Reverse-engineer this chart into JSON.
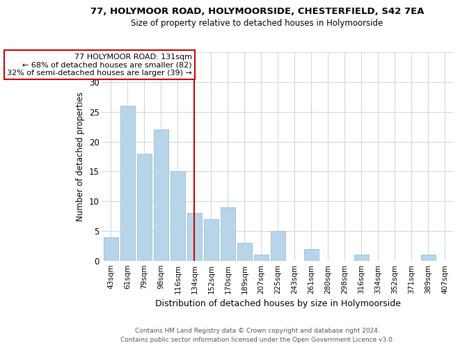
{
  "title": "77, HOLYMOOR ROAD, HOLYMOORSIDE, CHESTERFIELD, S42 7EA",
  "subtitle": "Size of property relative to detached houses in Holymoorside",
  "xlabel": "Distribution of detached houses by size in Holymoorside",
  "ylabel": "Number of detached properties",
  "bar_labels": [
    "43sqm",
    "61sqm",
    "79sqm",
    "98sqm",
    "116sqm",
    "134sqm",
    "152sqm",
    "170sqm",
    "189sqm",
    "207sqm",
    "225sqm",
    "243sqm",
    "261sqm",
    "280sqm",
    "298sqm",
    "316sqm",
    "334sqm",
    "352sqm",
    "371sqm",
    "389sqm",
    "407sqm"
  ],
  "bar_values": [
    4,
    26,
    18,
    22,
    15,
    8,
    7,
    9,
    3,
    1,
    5,
    0,
    2,
    0,
    0,
    1,
    0,
    0,
    0,
    1,
    0
  ],
  "bar_color": "#b8d4e8",
  "bar_edge_color": "#9ec4da",
  "property_line_x": 5,
  "property_line_label": "77 HOLYMOOR ROAD: 131sqm",
  "annotation_line1": "← 68% of detached houses are smaller (82)",
  "annotation_line2": "32% of semi-detached houses are larger (39) →",
  "annotation_box_color": "#ffffff",
  "annotation_box_edge": "#cc0000",
  "line_color": "#cc0000",
  "ylim": [
    0,
    35
  ],
  "yticks": [
    0,
    5,
    10,
    15,
    20,
    25,
    30,
    35
  ],
  "footer1": "Contains HM Land Registry data © Crown copyright and database right 2024.",
  "footer2": "Contains public sector information licensed under the Open Government Licence v3.0.",
  "bg_color": "#ffffff",
  "grid_color": "#d0d8e0"
}
